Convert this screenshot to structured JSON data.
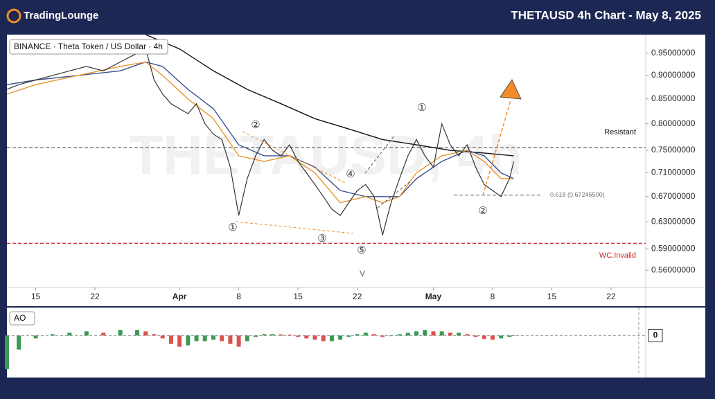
{
  "header": {
    "logo": "TradingLounge",
    "title": "THETAUSD 4h Chart - May 8, 2025"
  },
  "chart_data": [
    {
      "type": "line",
      "symbol_label": "BINANCE · Theta Token / US Dollar · 4h",
      "watermark": "THETAUSD, 4h",
      "log_scale": true,
      "xlim": [
        11.6,
        87.1
      ],
      "xticks": [
        15,
        22,
        {
          "value": 32,
          "label": "Apr"
        },
        {
          "value": 39,
          "label": "8"
        },
        {
          "value": 46,
          "label": "15"
        },
        {
          "value": 53,
          "label": "22"
        },
        {
          "value": 62,
          "label": "May"
        },
        {
          "value": 69,
          "label": "8"
        },
        {
          "value": 76,
          "label": "15"
        },
        {
          "value": 83,
          "label": "22"
        }
      ],
      "ylim": [
        0.537,
        0.994
      ],
      "yticks": [
        {
          "value": 0.95,
          "label": "0.95000000"
        },
        {
          "value": 0.9,
          "label": "0.90000000"
        },
        {
          "value": 0.85,
          "label": "0.85000000"
        },
        {
          "value": 0.8,
          "label": "0.80000000"
        },
        {
          "value": 0.75,
          "label": "0.75000000"
        },
        {
          "value": 0.71,
          "label": "0.71000000"
        },
        {
          "value": 0.67,
          "label": "0.67000000"
        },
        {
          "value": 0.63,
          "label": "0.63000000"
        },
        {
          "value": 0.59,
          "label": "0.59000000"
        },
        {
          "value": 0.56,
          "label": "0.56000000"
        }
      ],
      "series": [
        {
          "color": "#333333",
          "x": [
            11.6,
            13,
            15,
            17,
            19,
            21,
            23,
            25,
            27,
            28,
            29,
            30,
            31,
            32,
            33,
            34,
            35,
            36,
            37,
            38,
            39,
            40,
            41,
            42,
            43,
            44,
            45,
            46,
            47,
            48,
            49,
            50,
            51,
            52,
            53,
            54,
            55,
            56,
            57,
            58,
            59,
            60,
            61,
            62,
            63,
            64,
            65,
            66,
            67,
            68,
            69,
            70,
            71,
            71.5
          ],
          "values": [
            0.87,
            0.88,
            0.89,
            0.9,
            0.91,
            0.92,
            0.91,
            0.93,
            0.95,
            0.96,
            0.89,
            0.86,
            0.84,
            0.83,
            0.82,
            0.84,
            0.8,
            0.78,
            0.77,
            0.72,
            0.64,
            0.7,
            0.74,
            0.77,
            0.75,
            0.74,
            0.76,
            0.73,
            0.71,
            0.69,
            0.67,
            0.65,
            0.64,
            0.66,
            0.68,
            0.69,
            0.67,
            0.61,
            0.66,
            0.7,
            0.74,
            0.77,
            0.74,
            0.72,
            0.8,
            0.76,
            0.74,
            0.76,
            0.72,
            0.69,
            0.68,
            0.67,
            0.7,
            0.73
          ]
        },
        {
          "color": "#e8962e",
          "x": [
            11.6,
            15,
            20,
            25,
            28,
            30,
            33,
            36,
            39,
            42,
            45,
            48,
            51,
            54,
            56,
            58,
            60,
            63,
            66,
            68,
            70,
            71.5
          ],
          "values": [
            0.86,
            0.88,
            0.9,
            0.92,
            0.93,
            0.9,
            0.85,
            0.81,
            0.74,
            0.73,
            0.74,
            0.71,
            0.66,
            0.67,
            0.66,
            0.67,
            0.71,
            0.74,
            0.75,
            0.73,
            0.7,
            0.7
          ]
        },
        {
          "color": "#3a4f8f",
          "x": [
            11.6,
            15,
            20,
            25,
            28,
            30,
            33,
            36,
            39,
            42,
            45,
            48,
            51,
            54,
            56,
            58,
            60,
            63,
            66,
            68,
            70,
            71.5
          ],
          "values": [
            0.88,
            0.89,
            0.9,
            0.91,
            0.93,
            0.92,
            0.87,
            0.83,
            0.76,
            0.74,
            0.74,
            0.72,
            0.68,
            0.67,
            0.67,
            0.67,
            0.7,
            0.73,
            0.75,
            0.74,
            0.71,
            0.7
          ]
        },
        {
          "color": "#111111",
          "x": [
            28,
            32,
            36,
            40,
            44,
            48,
            52,
            56,
            60,
            64,
            68,
            71.5
          ],
          "values": [
            0.994,
            0.96,
            0.91,
            0.87,
            0.84,
            0.81,
            0.79,
            0.77,
            0.76,
            0.75,
            0.745,
            0.74
          ]
        }
      ],
      "levels": [
        {
          "label": "Resistant",
          "value": 0.755,
          "color": "#666666"
        },
        {
          "label": "WC.Invalid",
          "value": 0.598,
          "color": "#cc2222"
        },
        {
          "label": "0.618 (0.67246500)",
          "value": 0.672465,
          "color": "#777777"
        }
      ],
      "annotations": [
        "①",
        "②",
        "③",
        "④",
        "⑤",
        "①",
        "②",
        "V"
      ]
    },
    {
      "type": "bar",
      "label": "AO",
      "up_color": "#3a9a55",
      "down_color": "#d9534f",
      "xlim": [
        11.6,
        87.1
      ],
      "ylim": [
        -0.15,
        0.1
      ],
      "yticks": [
        0
      ],
      "x": [
        11.6,
        13,
        15,
        17,
        19,
        21,
        23,
        25,
        27,
        28,
        29,
        30,
        31,
        32,
        33,
        34,
        35,
        36,
        37,
        38,
        39,
        40,
        41,
        42,
        43,
        44,
        45,
        46,
        47,
        48,
        49,
        50,
        51,
        52,
        53,
        54,
        55,
        56,
        57,
        58,
        59,
        60,
        61,
        62,
        63,
        64,
        65,
        66,
        67,
        68,
        69,
        70,
        71,
        71.5
      ],
      "values": [
        -0.12,
        -0.05,
        -0.01,
        0.005,
        0.01,
        0.015,
        0.01,
        0.02,
        0.02,
        0.015,
        0.005,
        -0.01,
        -0.03,
        -0.04,
        -0.035,
        -0.02,
        -0.02,
        -0.015,
        -0.02,
        -0.03,
        -0.04,
        -0.02,
        -0.005,
        0.005,
        0.005,
        0.004,
        0.003,
        -0.005,
        -0.01,
        -0.015,
        -0.02,
        -0.02,
        -0.015,
        -0.005,
        0.005,
        0.01,
        0.005,
        -0.005,
        -0.002,
        0.005,
        0.01,
        0.015,
        0.02,
        0.015,
        0.015,
        0.01,
        0.01,
        0.005,
        -0.005,
        -0.012,
        -0.015,
        -0.01,
        -0.005,
        0.0
      ]
    }
  ]
}
